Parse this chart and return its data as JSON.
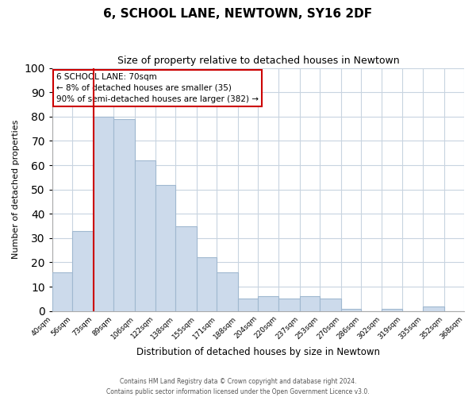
{
  "title": "6, SCHOOL LANE, NEWTOWN, SY16 2DF",
  "subtitle": "Size of property relative to detached houses in Newtown",
  "xlabel": "Distribution of detached houses by size in Newtown",
  "ylabel": "Number of detached properties",
  "bar_edges": [
    40,
    56,
    73,
    89,
    106,
    122,
    138,
    155,
    171,
    188,
    204,
    220,
    237,
    253,
    270,
    286,
    302,
    319,
    335,
    352,
    368
  ],
  "bar_heights": [
    16,
    33,
    80,
    79,
    62,
    52,
    35,
    22,
    16,
    5,
    6,
    5,
    6,
    5,
    1,
    0,
    1,
    0,
    2,
    0
  ],
  "bar_color": "#ccdaeb",
  "bar_edge_color": "#a0b8d0",
  "tick_labels": [
    "40sqm",
    "56sqm",
    "73sqm",
    "89sqm",
    "106sqm",
    "122sqm",
    "138sqm",
    "155sqm",
    "171sqm",
    "188sqm",
    "204sqm",
    "220sqm",
    "237sqm",
    "253sqm",
    "270sqm",
    "286sqm",
    "302sqm",
    "319sqm",
    "335sqm",
    "352sqm",
    "368sqm"
  ],
  "vline_x": 73,
  "vline_color": "#cc0000",
  "ylim": [
    0,
    100
  ],
  "yticks": [
    0,
    10,
    20,
    30,
    40,
    50,
    60,
    70,
    80,
    90,
    100
  ],
  "annotation_title": "6 SCHOOL LANE: 70sqm",
  "annotation_line1": "← 8% of detached houses are smaller (35)",
  "annotation_line2": "90% of semi-detached houses are larger (382) →",
  "annotation_box_color": "#ffffff",
  "annotation_box_edge": "#cc0000",
  "footer1": "Contains HM Land Registry data © Crown copyright and database right 2024.",
  "footer2": "Contains public sector information licensed under the Open Government Licence v3.0.",
  "bg_color": "#ffffff",
  "grid_color": "#c8d4e0"
}
